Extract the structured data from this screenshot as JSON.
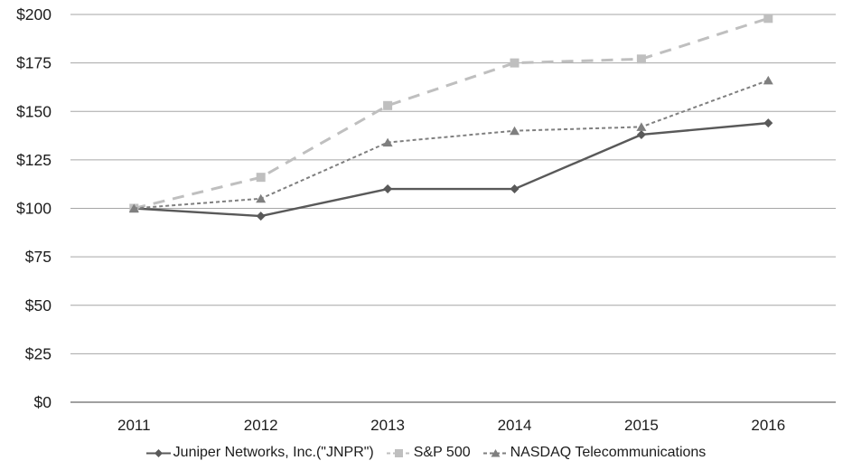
{
  "chart_data": {
    "type": "line",
    "title": "",
    "xlabel": "",
    "ylabel": "",
    "categories": [
      "2011",
      "2012",
      "2013",
      "2014",
      "2015",
      "2016"
    ],
    "y_tick_labels": [
      "$0",
      "$25",
      "$50",
      "$75",
      "$100",
      "$125",
      "$150",
      "$175",
      "$200"
    ],
    "y_tick_values": [
      0,
      25,
      50,
      75,
      100,
      125,
      150,
      175,
      200
    ],
    "ylim": [
      0,
      200
    ],
    "grid": true,
    "legend_position": "bottom",
    "series": [
      {
        "name": "Juniper Networks, Inc.(\"JNPR\")",
        "values": [
          100,
          96,
          110,
          110,
          138,
          144
        ],
        "color": "#595959",
        "line_style": "solid",
        "marker": "diamond"
      },
      {
        "name": "S&P 500",
        "values": [
          100,
          116,
          153,
          175,
          177,
          198
        ],
        "color": "#bfbfbf",
        "line_style": "long-dash",
        "marker": "square"
      },
      {
        "name": "NASDAQ Telecommunications",
        "values": [
          100,
          105,
          134,
          140,
          142,
          166
        ],
        "color": "#7f7f7f",
        "line_style": "short-dash",
        "marker": "triangle"
      }
    ]
  },
  "colors": {
    "gridline": "#a6a6a6",
    "axis_line": "#808080",
    "label_text": "#1c1c1c",
    "background": "#ffffff"
  }
}
